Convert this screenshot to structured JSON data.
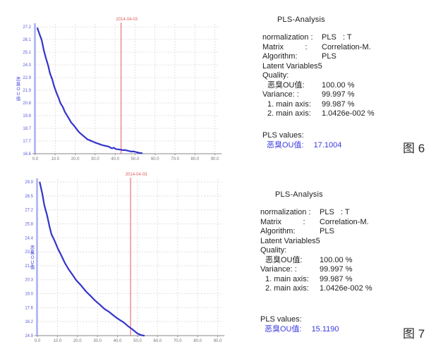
{
  "figures": [
    {
      "figure_label": "图 6",
      "panel": {
        "title": "PLS-Analysis",
        "rows": [
          {
            "label": "normalization :",
            "value": "PLS   : T",
            "indent": 0
          },
          {
            "label": "Matrix          :",
            "value": "Correlation-M.",
            "indent": 0
          },
          {
            "label": "Algorithm:",
            "value": "PLS",
            "indent": 0
          },
          {
            "label": "Latent Variables5",
            "value": "",
            "indent": 0
          },
          {
            "label": "Quality:",
            "value": "",
            "indent": 0
          },
          {
            "label": "恶臭OU值:",
            "value": "100.00 %",
            "indent": 1
          },
          {
            "label": "Variance: :",
            "value": "99.997 %",
            "indent": 0
          },
          {
            "label": "1. main axis:",
            "value": "99.987 %",
            "indent": 1
          },
          {
            "label": "2. main axis:",
            "value": "1.0426e-002 %",
            "indent": 1
          }
        ],
        "pls_values_label": "PLS  values:",
        "pls_value_name": "恶臭OU值:",
        "pls_value": "17.1004"
      }
    },
    {
      "figure_label": "图 7",
      "panel": {
        "title": "PLS-Analysis",
        "rows": [
          {
            "label": "normalization :",
            "value": "PLS   : T",
            "indent": 0
          },
          {
            "label": "Matrix          :",
            "value": "Correlation-M.",
            "indent": 0
          },
          {
            "label": "Algorithm:",
            "value": "PLS",
            "indent": 0
          },
          {
            "label": "Latent Variables5",
            "value": "",
            "indent": 0
          },
          {
            "label": "Quality:",
            "value": "",
            "indent": 0
          },
          {
            "label": "恶臭OU值:",
            "value": "100.00 %",
            "indent": 1
          },
          {
            "label": "Variance: :",
            "value": "99.997 %",
            "indent": 0
          },
          {
            "label": "1. main axis:",
            "value": "99.987 %",
            "indent": 1
          },
          {
            "label": "2. main axis:",
            "value": "1.0426e-002 %",
            "indent": 1
          }
        ],
        "pls_values_label": "PLS  values:",
        "pls_value_name": "恶臭OU值:",
        "pls_value": "15.1190"
      }
    }
  ],
  "chart_data": [
    {
      "type": "line",
      "title": "",
      "xlabel": "",
      "ylabel": "恶臭OU值",
      "xlim": [
        0,
        92
      ],
      "ylim": [
        16.6,
        27.2
      ],
      "x_ticks": [
        0,
        10,
        20,
        30,
        40,
        50,
        60,
        70,
        80,
        90
      ],
      "x_tick_labels": [
        "0.0",
        "10.0",
        "20.0",
        "30.0",
        "40.0",
        "50.0",
        "60.0",
        "70.0",
        "80.0",
        "90.0"
      ],
      "y_tick_labels": [
        "27.2",
        "26.1",
        "25.1",
        "24.0",
        "22.9",
        "21.9",
        "20.8",
        "19.8",
        "18.7",
        "17.7",
        "16.6"
      ],
      "grid": true,
      "marker_x": 43,
      "marker_label": "2014-04-03",
      "marker_color": "#e05a5a",
      "line_color": "#3434cc",
      "axis_color": "#b4bcf2",
      "series": [
        {
          "name": "恶臭OU值",
          "points": [
            [
              1.1,
              27.08
            ],
            [
              2.1,
              26.6
            ],
            [
              3.2,
              26.1
            ],
            [
              4.2,
              25.3
            ],
            [
              5.3,
              24.6
            ],
            [
              6.4,
              24.0
            ],
            [
              7.4,
              23.3
            ],
            [
              8.5,
              22.8
            ],
            [
              9.5,
              22.2
            ],
            [
              10.6,
              21.7
            ],
            [
              11.7,
              21.25
            ],
            [
              12.7,
              20.8
            ],
            [
              13.8,
              20.5
            ],
            [
              14.8,
              20.1
            ],
            [
              15.9,
              19.8
            ],
            [
              17.0,
              19.5
            ],
            [
              18.0,
              19.2
            ],
            [
              19.1,
              19.0
            ],
            [
              20.5,
              18.7
            ],
            [
              21.9,
              18.4
            ],
            [
              23.3,
              18.2
            ],
            [
              24.7,
              18.0
            ],
            [
              26.1,
              17.8
            ],
            [
              27.6,
              17.7
            ],
            [
              29.0,
              17.6
            ],
            [
              30.4,
              17.5
            ],
            [
              32.2,
              17.4
            ],
            [
              33.9,
              17.3
            ],
            [
              35.3,
              17.25
            ],
            [
              36.7,
              17.2
            ],
            [
              37.5,
              17.12
            ],
            [
              38.4,
              17.05
            ],
            [
              39.4,
              17.1
            ],
            [
              40.2,
              17.0
            ],
            [
              41.0,
              16.97
            ],
            [
              42.4,
              16.95
            ],
            [
              43.8,
              16.9
            ],
            [
              45.2,
              16.9
            ],
            [
              46.6,
              16.84
            ],
            [
              48.1,
              16.78
            ],
            [
              49.5,
              16.78
            ],
            [
              50.9,
              16.72
            ],
            [
              52.3,
              16.66
            ],
            [
              53.4,
              16.65
            ]
          ]
        }
      ]
    },
    {
      "type": "line",
      "title": "",
      "xlabel": "",
      "ylabel": "恶臭OU值",
      "xlim": [
        0,
        92
      ],
      "ylim": [
        14.9,
        29.9
      ],
      "x_ticks": [
        0,
        10,
        20,
        30,
        40,
        50,
        60,
        70,
        80,
        90
      ],
      "x_tick_labels": [
        "0.0",
        "10.0",
        "20.0",
        "30.0",
        "40.0",
        "50.0",
        "60.0",
        "70.0",
        "80.0",
        "90.0"
      ],
      "y_tick_labels": [
        "29.9",
        "28.5",
        "27.2",
        "25.8",
        "24.4",
        "23.1",
        "21.7",
        "20.3",
        "19.0",
        "17.6",
        "16.2",
        "14.9"
      ],
      "grid": true,
      "marker_x": 46.5,
      "marker_label": "2014-04-03",
      "marker_color": "#e05a5a",
      "line_color": "#3434cc",
      "axis_color": "#b4bcf2",
      "series": [
        {
          "name": "恶臭OU值",
          "points": [
            [
              1.2,
              29.85
            ],
            [
              2.5,
              28.7
            ],
            [
              3.5,
              27.6
            ],
            [
              4.9,
              26.6
            ],
            [
              6.0,
              25.6
            ],
            [
              7.0,
              24.8
            ],
            [
              8.5,
              24.2
            ],
            [
              10.2,
              23.4
            ],
            [
              12.0,
              22.7
            ],
            [
              13.7,
              22.0
            ],
            [
              15.5,
              21.4
            ],
            [
              17.3,
              20.9
            ],
            [
              19.4,
              20.3
            ],
            [
              21.8,
              19.8
            ],
            [
              24.3,
              19.2
            ],
            [
              26.4,
              18.8
            ],
            [
              28.9,
              18.3
            ],
            [
              31.3,
              17.9
            ],
            [
              33.5,
              17.5
            ],
            [
              35.9,
              17.2
            ],
            [
              38.4,
              16.8
            ],
            [
              40.5,
              16.5
            ],
            [
              43.0,
              16.2
            ],
            [
              45.4,
              15.8
            ],
            [
              47.5,
              15.5
            ],
            [
              50.0,
              15.1
            ],
            [
              51.8,
              14.95
            ],
            [
              53.2,
              14.9
            ]
          ]
        }
      ]
    }
  ]
}
